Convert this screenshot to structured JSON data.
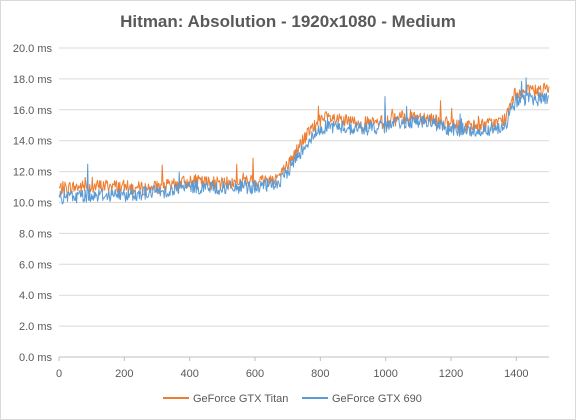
{
  "chart_data": {
    "type": "line",
    "title": "Hitman: Absolution - 1920x1080 - Medium",
    "xlabel": "",
    "ylabel": "",
    "xlim": [
      0,
      1500
    ],
    "ylim": [
      0,
      20
    ],
    "x_ticks": [
      "0",
      "200",
      "400",
      "600",
      "800",
      "1000",
      "1200",
      "1400"
    ],
    "y_ticks": [
      "0.0 ms",
      "2.0 ms",
      "4.0 ms",
      "6.0 ms",
      "8.0 ms",
      "10.0 ms",
      "12.0 ms",
      "14.0 ms",
      "16.0 ms",
      "18.0 ms",
      "20.0 ms"
    ],
    "grid": "horizontal",
    "legend_position": "bottom",
    "series": [
      {
        "name": "GeForce GTX Titan",
        "color": "#ed7d31",
        "x": [
          0,
          50,
          100,
          150,
          200,
          250,
          300,
          350,
          400,
          450,
          500,
          550,
          600,
          650,
          680,
          700,
          720,
          740,
          760,
          780,
          800,
          820,
          850,
          900,
          950,
          1000,
          1050,
          1100,
          1150,
          1200,
          1250,
          1300,
          1350,
          1370,
          1390,
          1400,
          1450,
          1500
        ],
        "values": [
          10.9,
          11.0,
          11.0,
          11.1,
          11.0,
          10.9,
          11.0,
          11.1,
          11.4,
          11.3,
          11.2,
          11.3,
          11.4,
          11.5,
          11.8,
          12.4,
          13.1,
          13.8,
          14.4,
          14.9,
          15.2,
          15.5,
          15.3,
          15.2,
          15.1,
          15.2,
          15.5,
          15.6,
          15.4,
          15.0,
          14.9,
          15.0,
          15.2,
          15.5,
          16.8,
          17.1,
          17.2,
          17.3
        ]
      },
      {
        "name": "GeForce GTX 690",
        "color": "#5b9bd5",
        "x": [
          0,
          50,
          100,
          150,
          200,
          250,
          300,
          350,
          400,
          450,
          500,
          550,
          600,
          650,
          680,
          700,
          720,
          740,
          760,
          780,
          800,
          820,
          850,
          900,
          950,
          1000,
          1050,
          1100,
          1150,
          1200,
          1250,
          1300,
          1350,
          1370,
          1390,
          1400,
          1450,
          1500
        ],
        "values": [
          10.3,
          10.4,
          10.5,
          10.5,
          10.5,
          10.6,
          10.7,
          10.8,
          11.0,
          11.0,
          10.9,
          11.0,
          11.0,
          11.1,
          11.4,
          12.0,
          12.7,
          13.3,
          13.9,
          14.3,
          14.7,
          15.0,
          14.9,
          14.8,
          14.8,
          14.9,
          15.2,
          15.3,
          15.1,
          14.7,
          14.6,
          14.7,
          14.9,
          15.2,
          16.3,
          16.6,
          16.7,
          16.7
        ]
      }
    ]
  }
}
